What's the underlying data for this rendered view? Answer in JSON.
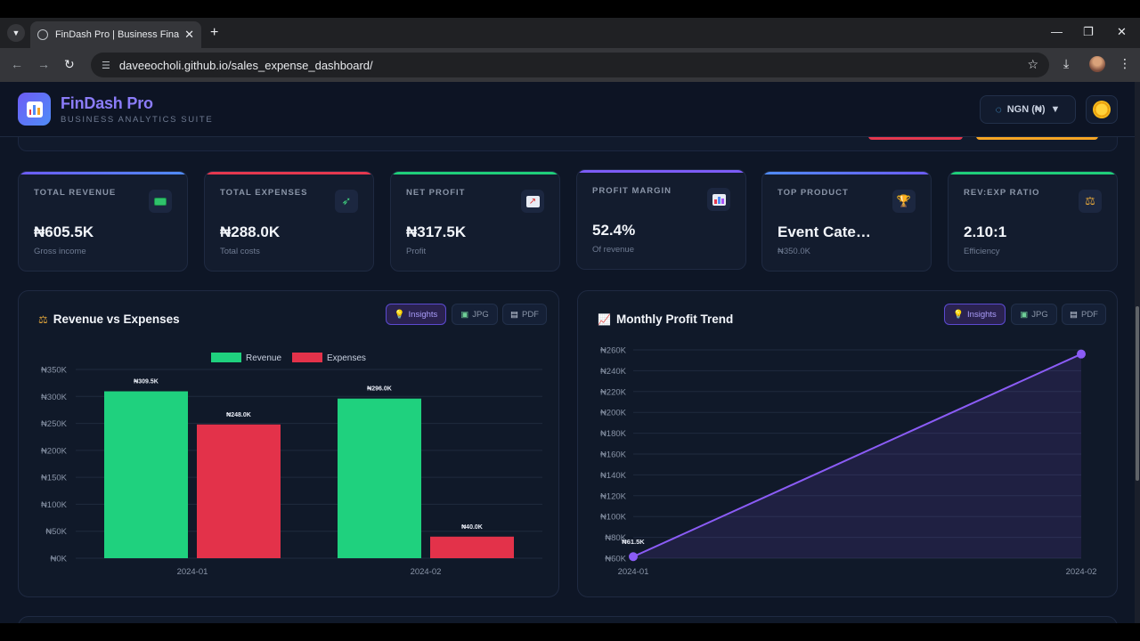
{
  "browser": {
    "tab_title": "FinDash Pro | Business Financial",
    "url": "daveeocholi.github.io/sales_expense_dashboard/",
    "new_tab": "+",
    "tab_close": "✕"
  },
  "header": {
    "brand": "FinDash Pro",
    "tagline": "BUSINESS ANALYTICS SUITE",
    "currency": "NGN (₦)",
    "currency_caret": "▼"
  },
  "kpis": [
    {
      "label": "TOTAL REVENUE",
      "value": "₦605.5K",
      "sub": "Gross income",
      "icon": "money-icon",
      "accent": "#6d5cf6"
    },
    {
      "label": "TOTAL EXPENSES",
      "value": "₦288.0K",
      "sub": "Total costs",
      "icon": "money-wings-icon",
      "accent": "#e5384f"
    },
    {
      "label": "NET PROFIT",
      "value": "₦317.5K",
      "sub": "Profit",
      "icon": "chart-up-icon",
      "accent": "#1fce7a"
    },
    {
      "label": "PROFIT MARGIN",
      "value": "52.4%",
      "sub": "Of revenue",
      "icon": "bar-chart-icon",
      "accent": "#7c5cf6"
    },
    {
      "label": "TOP PRODUCT",
      "value": "Event Cate…",
      "sub": "₦350.0K",
      "icon": "trophy-icon",
      "accent": "#6d5cf6"
    },
    {
      "label": "REV:EXP RATIO",
      "value": "2.10:1",
      "sub": "Efficiency",
      "icon": "scales-icon",
      "accent": "#1fce7a"
    }
  ],
  "panels": {
    "buttons": {
      "insights": "Insights",
      "jpg": "JPG",
      "pdf": "PDF"
    },
    "revenue_title": "Revenue vs Expenses",
    "profit_title": "Monthly Profit Trend"
  },
  "colors": {
    "revenue": "#1fd17e",
    "expenses": "#e3324a",
    "profit": "#8b5cf6"
  },
  "chart_data": [
    {
      "type": "bar",
      "title": "Revenue vs Expenses",
      "categories": [
        "2024-01",
        "2024-02"
      ],
      "series": [
        {
          "name": "Revenue",
          "values": [
            309.5,
            296.0
          ],
          "labels": [
            "₦309.5K",
            "₦296.0K"
          ]
        },
        {
          "name": "Expenses",
          "values": [
            248.0,
            40.0
          ],
          "labels": [
            "₦248.0K",
            "₦40.0K"
          ]
        }
      ],
      "yticks": [
        "₦0K",
        "₦50K",
        "₦100K",
        "₦150K",
        "₦200K",
        "₦250K",
        "₦300K",
        "₦350K"
      ],
      "ylim": [
        0,
        350
      ],
      "legend": "top-center",
      "grid": true
    },
    {
      "type": "line",
      "title": "Monthly Profit Trend",
      "x": [
        "2024-01",
        "2024-02"
      ],
      "values": [
        61.5,
        256.0
      ],
      "labels": [
        "₦61.5K",
        ""
      ],
      "yticks": [
        "₦60K",
        "₦80K",
        "₦100K",
        "₦120K",
        "₦140K",
        "₦160K",
        "₦180K",
        "₦200K",
        "₦220K",
        "₦240K",
        "₦260K"
      ],
      "ylim": [
        60,
        260
      ],
      "grid": true
    }
  ]
}
